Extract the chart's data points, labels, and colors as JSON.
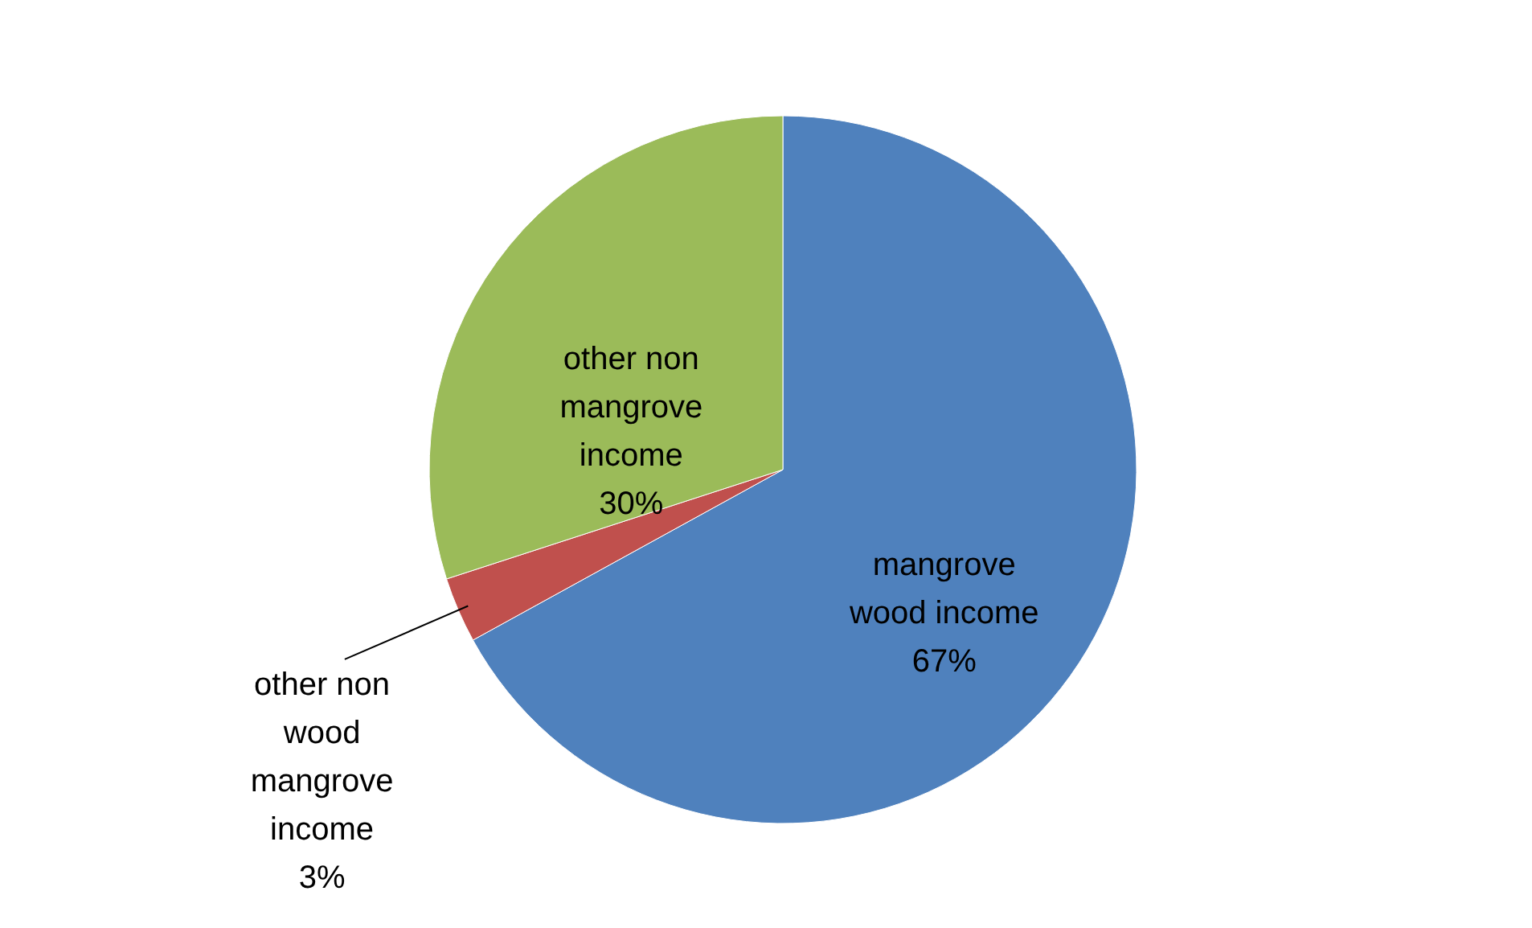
{
  "chart_data": {
    "type": "pie",
    "categories": [
      "mangrove wood income",
      "other non wood mangrove income",
      "other non mangrove income"
    ],
    "values": [
      67,
      3,
      30
    ],
    "colors": [
      "#4f81bd",
      "#c0504d",
      "#9bbb59"
    ],
    "value_labels": [
      "67%",
      "3%",
      "30%"
    ]
  }
}
